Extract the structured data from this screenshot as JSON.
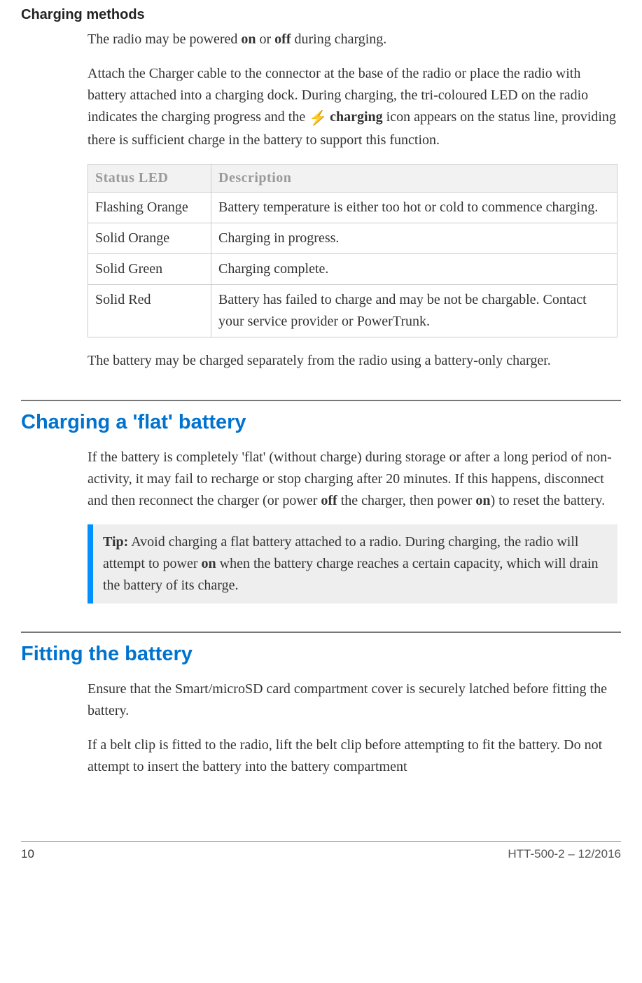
{
  "section1": {
    "title": "Charging methods",
    "p1_a": "The radio may be powered ",
    "p1_on": "on",
    "p1_b": " or ",
    "p1_off": "off",
    "p1_c": " during charging.",
    "p2_a": "Attach the Charger cable to the connector at the base of the radio or place the radio with battery attached into a charging dock. During charging, the tri-coloured LED on the radio indicates the charging progress and the ",
    "p2_b": " ",
    "p2_charging": "charging",
    "p2_c": " icon appears on the status line, providing there is sufficient charge in the battery to support this function.",
    "table": {
      "col1": "Status LED",
      "col2": "Description",
      "rows": [
        {
          "led": "Flashing Orange",
          "desc": "Battery temperature is either too hot or cold to commence charging."
        },
        {
          "led": "Solid Orange",
          "desc": "Charging in progress."
        },
        {
          "led": "Solid Green",
          "desc": "Charging complete."
        },
        {
          "led": "Solid Red",
          "desc": "Battery has failed to charge and may be not be chargable. Contact your service provider or PowerTrunk."
        }
      ]
    },
    "p3": "The battery may be charged separately from the radio using a battery-only charger."
  },
  "section2": {
    "title": "Charging a 'flat' battery",
    "p1_a": "If the battery is completely 'flat' (without charge) during storage or after a long period of non-activity, it may fail to recharge or stop charging after 20 minutes. If this happens, disconnect and then reconnect the charger (or power ",
    "p1_off": "off",
    "p1_b": " the charger, then power ",
    "p1_on": "on",
    "p1_c": ") to reset the battery.",
    "tip_label": "Tip:",
    "tip_a": "  Avoid charging a flat battery attached to a radio. During charging, the radio will attempt to power ",
    "tip_on": "on",
    "tip_b": " when the battery charge reaches a certain capacity, which will drain the battery of its charge."
  },
  "section3": {
    "title": "Fitting the battery",
    "p1": "Ensure that the Smart/microSD card compartment cover is securely latched before fitting the battery.",
    "p2": "If a belt clip is fitted to the radio, lift the belt clip before attempting to fit the battery. Do not attempt to insert the battery into the battery compartment"
  },
  "footer": {
    "page": "10",
    "doc": "HTT-500-2 – 12/2016"
  },
  "colors": {
    "heading_blue": "#0073cf",
    "tip_border": "#0090ff",
    "tip_bg": "#eeeeee",
    "bolt": "#e0a000"
  }
}
